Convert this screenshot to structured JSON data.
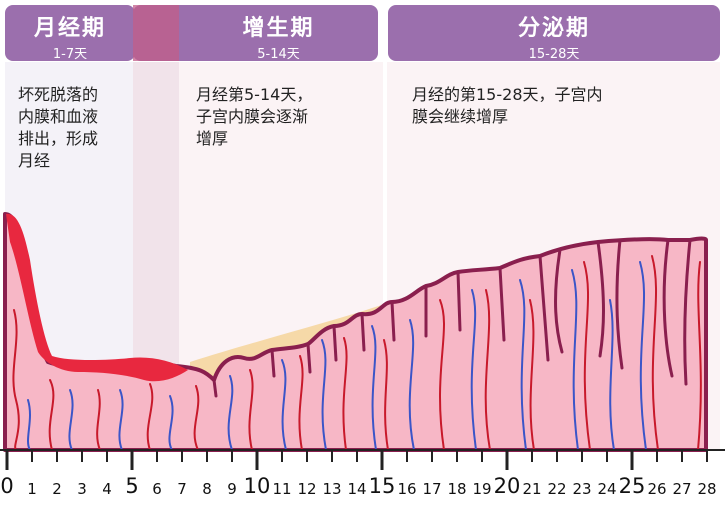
{
  "phases": [
    {
      "title": "月经期",
      "days": "1-7天",
      "description": "坏死脱落的\n内膜和血液\n排出，形成\n月经"
    },
    {
      "title": "增生期",
      "days": "5-14天",
      "description": "月经第5-14天，\n子宫内膜会逐渐\n增厚"
    },
    {
      "title": "分泌期",
      "days": "15-28天",
      "description": "月经的第15-28天，子宫内\n膜会继续增厚"
    }
  ],
  "axis": {
    "labels": [
      "0",
      "1",
      "2",
      "3",
      "4",
      "5",
      "6",
      "7",
      "8",
      "9",
      "10",
      "11",
      "12",
      "13",
      "14",
      "15",
      "16",
      "17",
      "18",
      "19",
      "20",
      "21",
      "22",
      "23",
      "24",
      "25",
      "26",
      "27",
      "28"
    ],
    "major_every": 5
  },
  "colors": {
    "phase_box": "#9b6fad",
    "phase_overlap": "#c25e8a",
    "endometrium_fill": "#f7b7c6",
    "endometrium_outline": "#8a1f4e",
    "blood": "#e8283f",
    "artery": "#c8192b",
    "vein": "#3b55c8",
    "secretion": "#f6d9a8"
  }
}
